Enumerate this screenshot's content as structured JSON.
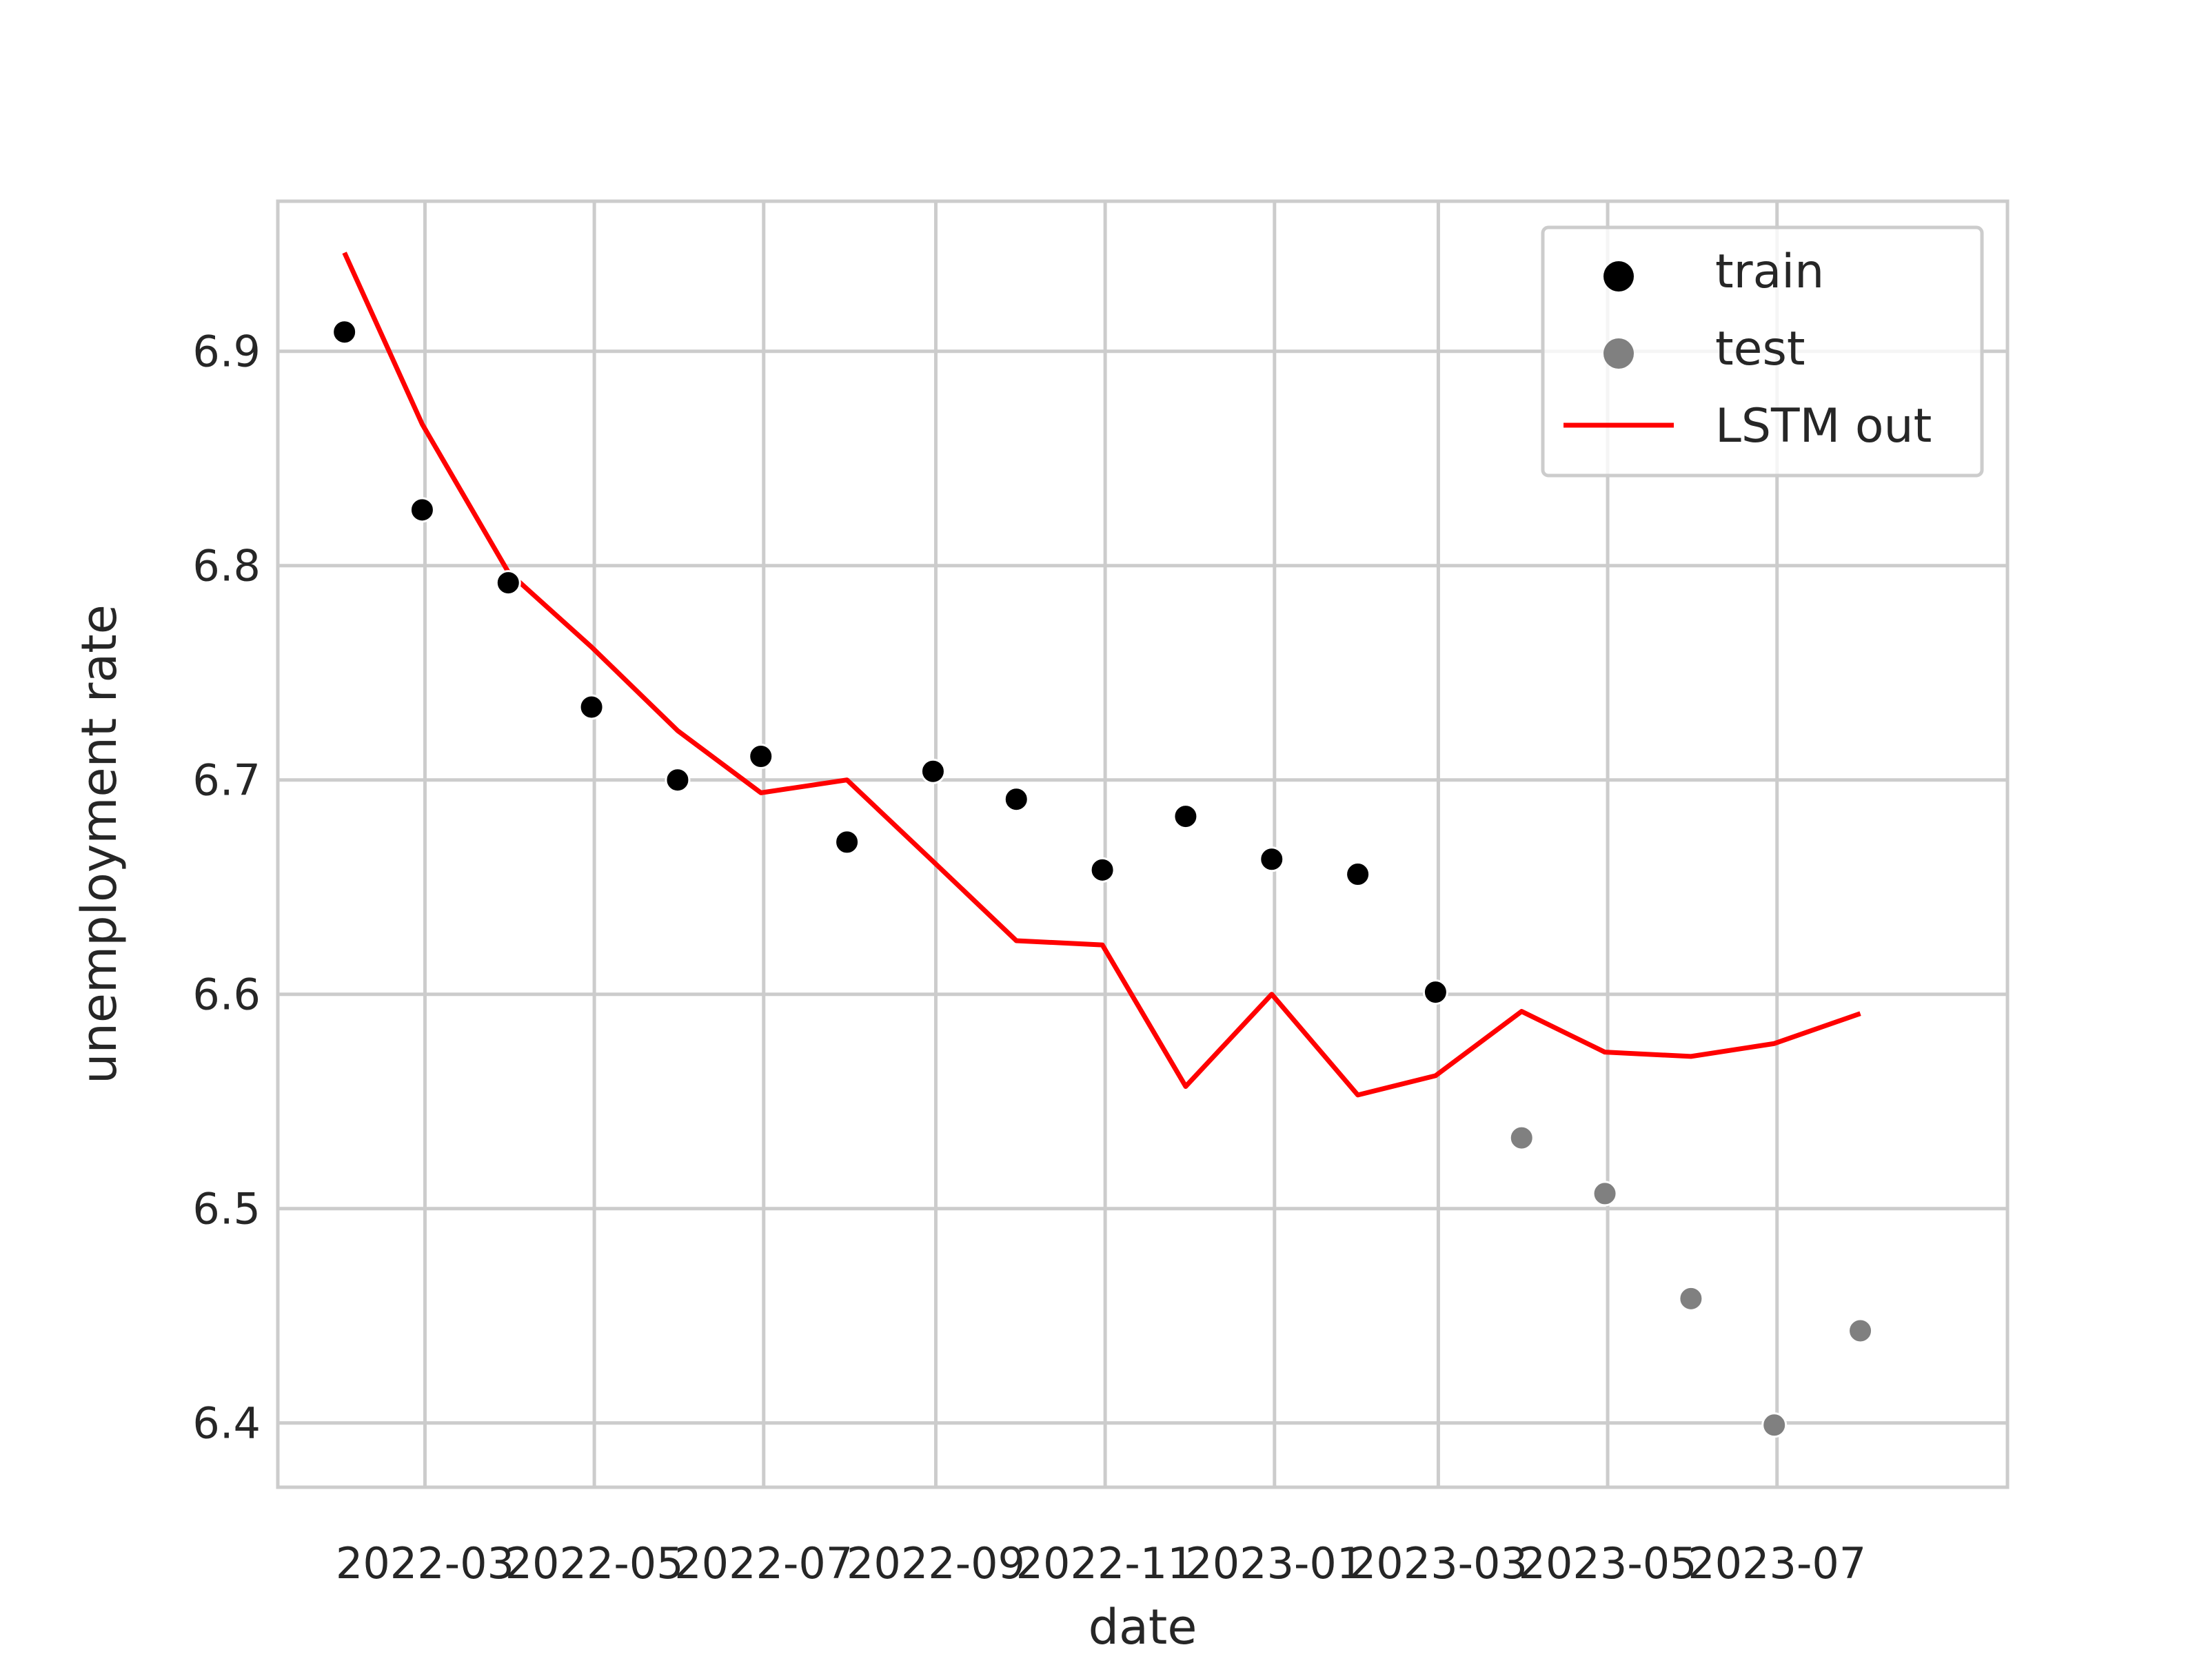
{
  "chart_data": {
    "type": "scatter",
    "title": "",
    "xlabel": "date",
    "ylabel": "unemployment rate",
    "xlim": [
      "2022-01-07",
      "2023-09-22"
    ],
    "ylim": [
      6.37,
      6.97
    ],
    "grid": true,
    "legend_position": "top-right",
    "x_ticks": [
      "2022-03-01",
      "2022-05-01",
      "2022-07-01",
      "2022-09-01",
      "2022-11-01",
      "2023-01-01",
      "2023-03-01",
      "2023-05-01",
      "2023-07-01"
    ],
    "x_tick_labels": [
      "2022-03",
      "2022-05",
      "2022-07",
      "2022-09",
      "2022-11",
      "2023-01",
      "2023-03",
      "2023-05",
      "2023-07"
    ],
    "y_ticks": [
      6.4,
      6.5,
      6.6,
      6.7,
      6.8,
      6.9
    ],
    "y_tick_labels": [
      "6.4",
      "6.5",
      "6.6",
      "6.7",
      "6.8",
      "6.9"
    ],
    "series": [
      {
        "name": "train",
        "kind": "scatter",
        "color": "#000000",
        "x": [
          "2022-01-31",
          "2022-02-28",
          "2022-03-31",
          "2022-04-30",
          "2022-05-31",
          "2022-06-30",
          "2022-07-31",
          "2022-08-31",
          "2022-09-30",
          "2022-10-31",
          "2022-11-30",
          "2022-12-31",
          "2023-01-31",
          "2023-02-28"
        ],
        "y": [
          6.909,
          6.826,
          6.792,
          6.734,
          6.7,
          6.711,
          6.671,
          6.704,
          6.691,
          6.658,
          6.683,
          6.663,
          6.656,
          6.601
        ]
      },
      {
        "name": "test",
        "kind": "scatter",
        "color": "#808080",
        "x": [
          "2023-03-31",
          "2023-04-30",
          "2023-05-31",
          "2023-06-30",
          "2023-07-31"
        ],
        "y": [
          6.533,
          6.507,
          6.458,
          6.399,
          6.443
        ]
      },
      {
        "name": "LSTM out",
        "kind": "line",
        "color": "#ff0000",
        "x": [
          "2022-01-31",
          "2022-02-28",
          "2022-03-31",
          "2022-04-30",
          "2022-05-31",
          "2022-06-30",
          "2022-07-31",
          "2022-08-31",
          "2022-09-30",
          "2022-10-31",
          "2022-11-30",
          "2022-12-31",
          "2023-01-31",
          "2023-02-28",
          "2023-03-31",
          "2023-04-30",
          "2023-05-31",
          "2023-06-30",
          "2023-07-31"
        ],
        "y": [
          6.946,
          6.866,
          6.797,
          6.762,
          6.723,
          6.694,
          6.7,
          6.662,
          6.625,
          6.623,
          6.557,
          6.6,
          6.553,
          6.562,
          6.592,
          6.573,
          6.571,
          6.577,
          6.591
        ]
      }
    ]
  }
}
